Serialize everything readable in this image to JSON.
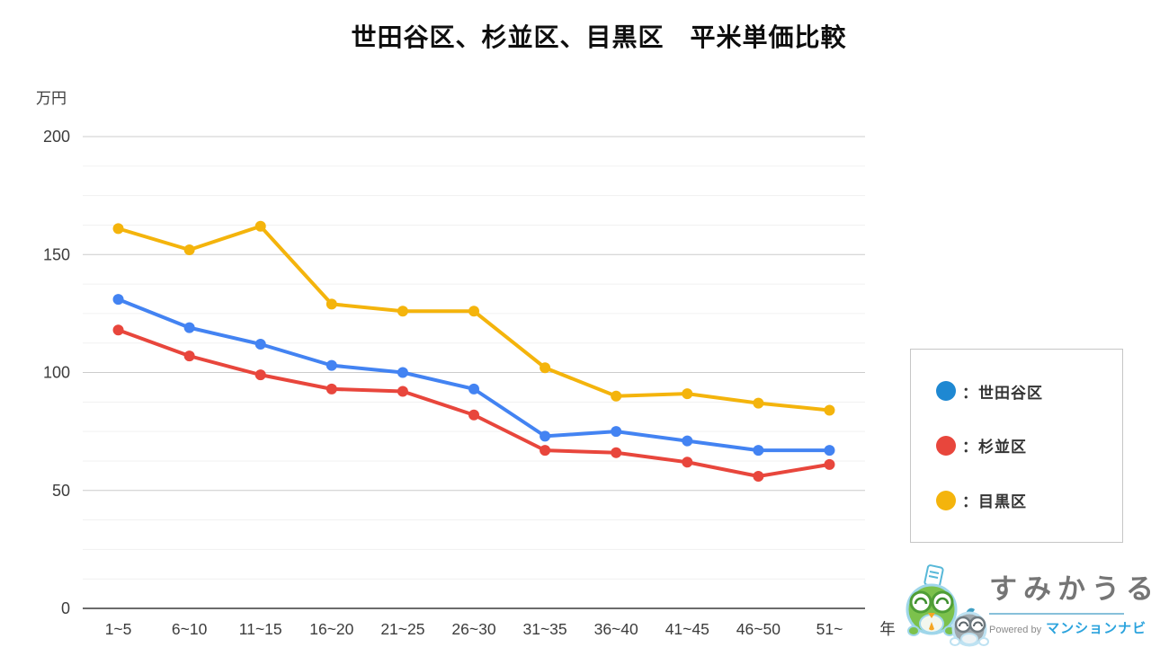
{
  "title": "世田谷区、杉並区、目黒区　平米単価比較",
  "chart_data": {
    "type": "line",
    "title": "世田谷区、杉並区、目黒区　平米単価比較",
    "y_unit_label": "万円",
    "x_unit_label": "年",
    "categories": [
      "1~5",
      "6~10",
      "11~15",
      "16~20",
      "21~25",
      "26~30",
      "31~35",
      "36~40",
      "41~45",
      "46~50",
      "51~"
    ],
    "series": [
      {
        "name": "世田谷区",
        "color": "#4383F2",
        "values": [
          131,
          119,
          112,
          103,
          100,
          93,
          73,
          75,
          71,
          67,
          67
        ]
      },
      {
        "name": "杉並区",
        "color": "#E8463C",
        "values": [
          118,
          107,
          99,
          93,
          92,
          82,
          67,
          66,
          62,
          56,
          61
        ]
      },
      {
        "name": "目黒区",
        "color": "#F4B40C",
        "values": [
          161,
          152,
          162,
          129,
          126,
          126,
          102,
          90,
          91,
          87,
          84
        ]
      }
    ],
    "ylim": [
      0,
      200
    ],
    "y_ticks": [
      0,
      50,
      100,
      150,
      200
    ],
    "y_major_step": 50,
    "y_minor_step": 12.5,
    "grid": true,
    "legend_position": "right",
    "colors": {
      "major_grid": "#cccccc",
      "minor_grid": "#f1f1f1",
      "axis_line": "#6b6b6b",
      "tick_label": "#3c3c3c"
    }
  },
  "legend": {
    "prefix": "：",
    "items": [
      {
        "label": "世田谷区",
        "color": "#1E88D2"
      },
      {
        "label": "杉並区",
        "color": "#E8463C"
      },
      {
        "label": "目黒区",
        "color": "#F4B40C"
      }
    ]
  },
  "logo": {
    "brand": "すみかうる",
    "powered_by": "Powered by",
    "brand2": "マンションナビ",
    "colors": {
      "brand_text": "#757575",
      "brand2_text": "#2ba3dd",
      "mascot_green": "#7CC14C",
      "mascot_gray": "#9FA8AD",
      "mascot_outline": "#9FD6EA",
      "mascot_accent": "#F5A623"
    }
  }
}
